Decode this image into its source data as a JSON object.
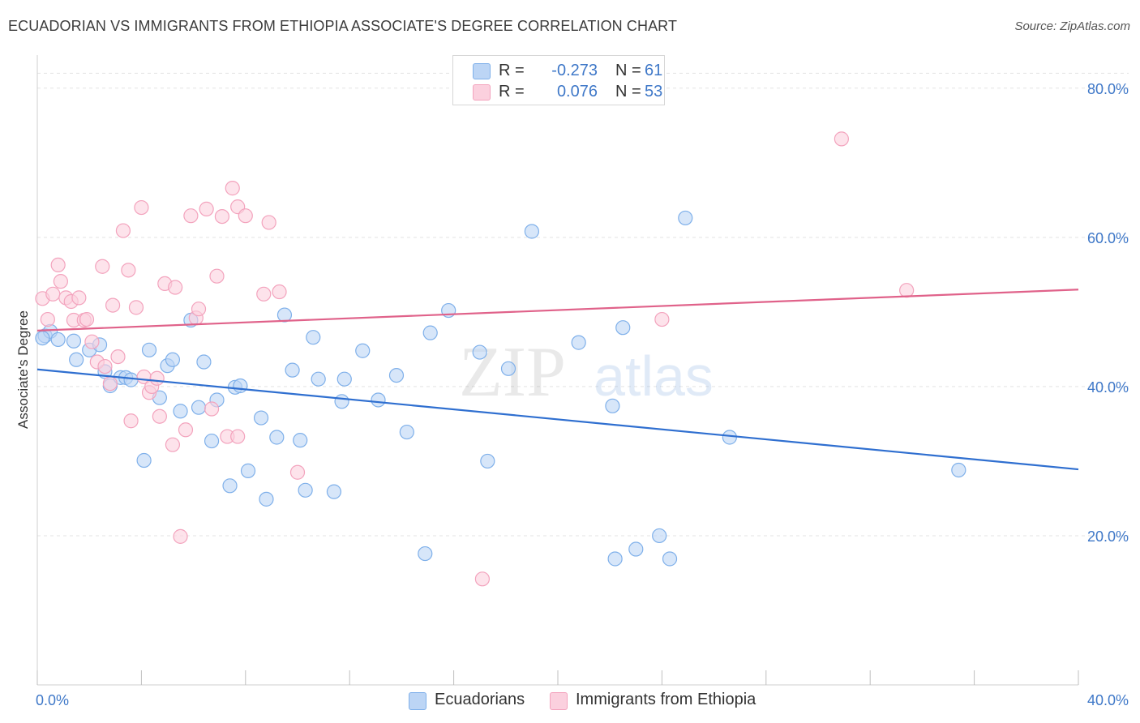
{
  "title": "ECUADORIAN VS IMMIGRANTS FROM ETHIOPIA ASSOCIATE'S DEGREE CORRELATION CHART",
  "source": "Source: ZipAtlas.com",
  "watermark": {
    "zip": "ZIP",
    "atlas": "atlas"
  },
  "legend_top": [
    {
      "r_label": "R =",
      "r_value": "-0.273",
      "n_label": "N =",
      "n_value": "61",
      "color": "#7fb0ea"
    },
    {
      "r_label": "R =",
      "r_value": "0.076",
      "n_label": "N =",
      "n_value": "53",
      "color": "#f3a3bd"
    }
  ],
  "legend_bottom": [
    {
      "label": "Ecuadorians",
      "color": "#7fb0ea"
    },
    {
      "label": "Immigrants from Ethiopia",
      "color": "#f3a3bd"
    }
  ],
  "chart_data": {
    "type": "scatter",
    "title": "ECUADORIAN VS IMMIGRANTS FROM ETHIOPIA ASSOCIATE'S DEGREE CORRELATION CHART",
    "xlabel": "",
    "ylabel": "Associate's Degree",
    "xlim": [
      0,
      40
    ],
    "ylim": [
      0,
      84
    ],
    "x_tick_labels": [
      "0.0%",
      "40.0%"
    ],
    "y_ticks": [
      20,
      40,
      60,
      80
    ],
    "y_tick_labels": [
      "20.0%",
      "40.0%",
      "60.0%",
      "80.0%"
    ],
    "grid": true,
    "legend_placement": "top-center",
    "series": [
      {
        "name": "Ecuadorians",
        "color": "#7fb0ea",
        "line_color": "#2f6fd0",
        "trend": {
          "x": [
            0,
            40
          ],
          "y": [
            42.3,
            28.9
          ]
        },
        "points": [
          [
            0.3,
            46.8
          ],
          [
            0.5,
            47.4
          ],
          [
            0.8,
            46.3
          ],
          [
            1.4,
            46.1
          ],
          [
            1.5,
            43.6
          ],
          [
            2.0,
            44.9
          ],
          [
            2.4,
            45.6
          ],
          [
            2.6,
            42.0
          ],
          [
            2.8,
            40.1
          ],
          [
            3.2,
            41.2
          ],
          [
            3.4,
            41.2
          ],
          [
            3.6,
            40.9
          ],
          [
            4.1,
            30.1
          ],
          [
            4.3,
            44.9
          ],
          [
            4.7,
            38.5
          ],
          [
            5.0,
            42.8
          ],
          [
            5.2,
            43.6
          ],
          [
            5.5,
            36.7
          ],
          [
            5.9,
            48.9
          ],
          [
            6.2,
            37.2
          ],
          [
            6.4,
            43.3
          ],
          [
            6.7,
            32.7
          ],
          [
            6.9,
            38.2
          ],
          [
            7.4,
            26.7
          ],
          [
            7.6,
            39.9
          ],
          [
            7.8,
            40.1
          ],
          [
            8.1,
            28.7
          ],
          [
            8.6,
            35.8
          ],
          [
            8.8,
            24.9
          ],
          [
            9.2,
            33.2
          ],
          [
            9.5,
            49.6
          ],
          [
            9.8,
            42.2
          ],
          [
            10.1,
            32.8
          ],
          [
            10.3,
            26.1
          ],
          [
            10.6,
            46.6
          ],
          [
            10.8,
            41.0
          ],
          [
            11.4,
            25.9
          ],
          [
            11.7,
            38.0
          ],
          [
            11.8,
            41.0
          ],
          [
            12.5,
            44.8
          ],
          [
            13.1,
            38.2
          ],
          [
            13.8,
            41.5
          ],
          [
            14.2,
            33.9
          ],
          [
            14.9,
            17.6
          ],
          [
            15.1,
            47.2
          ],
          [
            15.8,
            50.2
          ],
          [
            17.0,
            44.6
          ],
          [
            17.3,
            30.0
          ],
          [
            18.1,
            42.4
          ],
          [
            19.0,
            60.8
          ],
          [
            20.8,
            45.9
          ],
          [
            22.1,
            37.4
          ],
          [
            22.2,
            16.9
          ],
          [
            22.5,
            47.9
          ],
          [
            23.0,
            18.2
          ],
          [
            23.9,
            20.0
          ],
          [
            24.3,
            16.9
          ],
          [
            24.9,
            62.6
          ],
          [
            26.6,
            33.2
          ],
          [
            35.4,
            28.8
          ],
          [
            0.2,
            46.5
          ]
        ]
      },
      {
        "name": "Immigrants from Ethiopia",
        "color": "#f3a3bd",
        "line_color": "#e0628a",
        "trend": {
          "x": [
            0,
            40
          ],
          "y": [
            47.5,
            53.0
          ]
        },
        "points": [
          [
            0.2,
            51.8
          ],
          [
            0.4,
            49.0
          ],
          [
            0.6,
            52.4
          ],
          [
            0.8,
            56.3
          ],
          [
            0.9,
            54.1
          ],
          [
            1.1,
            51.9
          ],
          [
            1.3,
            51.4
          ],
          [
            1.4,
            48.9
          ],
          [
            1.6,
            51.9
          ],
          [
            1.8,
            48.9
          ],
          [
            1.9,
            49.0
          ],
          [
            2.1,
            46.0
          ],
          [
            2.3,
            43.3
          ],
          [
            2.6,
            42.7
          ],
          [
            2.8,
            40.4
          ],
          [
            2.5,
            56.1
          ],
          [
            2.9,
            50.9
          ],
          [
            3.1,
            44.0
          ],
          [
            3.3,
            60.9
          ],
          [
            3.5,
            55.6
          ],
          [
            3.6,
            35.4
          ],
          [
            3.8,
            50.6
          ],
          [
            4.0,
            64.0
          ],
          [
            4.1,
            41.3
          ],
          [
            4.3,
            39.2
          ],
          [
            4.4,
            40.0
          ],
          [
            4.6,
            41.1
          ],
          [
            4.7,
            36.0
          ],
          [
            4.9,
            53.8
          ],
          [
            5.2,
            32.2
          ],
          [
            5.3,
            53.3
          ],
          [
            5.5,
            19.9
          ],
          [
            5.7,
            34.2
          ],
          [
            5.9,
            62.9
          ],
          [
            6.1,
            49.2
          ],
          [
            6.2,
            50.4
          ],
          [
            6.5,
            63.8
          ],
          [
            6.7,
            37.0
          ],
          [
            6.9,
            54.8
          ],
          [
            7.1,
            62.8
          ],
          [
            7.3,
            33.3
          ],
          [
            7.5,
            66.6
          ],
          [
            7.7,
            64.1
          ],
          [
            7.7,
            33.3
          ],
          [
            8.0,
            62.9
          ],
          [
            8.7,
            52.4
          ],
          [
            8.9,
            62.0
          ],
          [
            9.3,
            52.7
          ],
          [
            10.0,
            28.5
          ],
          [
            17.1,
            14.2
          ],
          [
            24.0,
            49.0
          ],
          [
            30.9,
            73.2
          ],
          [
            33.4,
            52.9
          ]
        ]
      }
    ]
  }
}
